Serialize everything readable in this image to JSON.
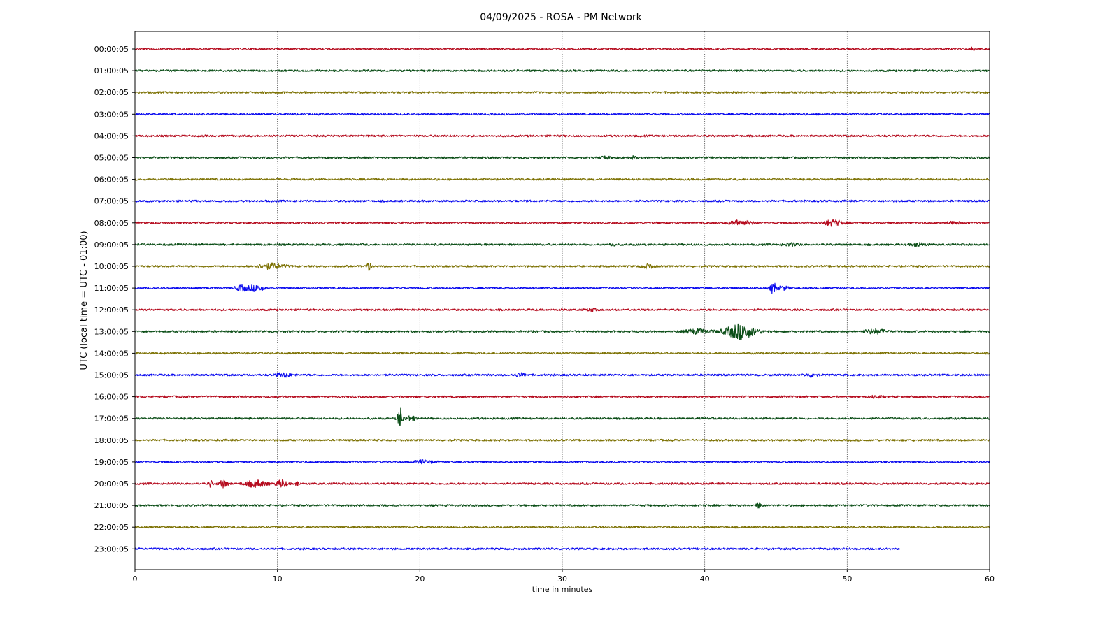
{
  "chart_data": {
    "type": "line",
    "title": "04/09/2025 - ROSA - PM Network",
    "xlabel": "time in minutes",
    "ylabel": "UTC (local time = UTC - 01:00)",
    "xlim": [
      0,
      60
    ],
    "xticks": [
      "0",
      "10",
      "20",
      "30",
      "40",
      "50",
      "60"
    ],
    "grid": "vertical dotted lines at x = 10, 20, 30, 40, 50",
    "colors": [
      "#b50b1e",
      "#0b4e17",
      "#7d7204",
      "#0a0aef"
    ],
    "rows": [
      {
        "label": "00:00:05",
        "color": "#b50b1e",
        "end": 60,
        "events": [
          {
            "t": 58.8,
            "amp": 0.12,
            "dur": 0.4
          }
        ]
      },
      {
        "label": "01:00:05",
        "color": "#0b4e17",
        "end": 60,
        "events": []
      },
      {
        "label": "02:00:05",
        "color": "#7d7204",
        "end": 60,
        "events": []
      },
      {
        "label": "03:00:05",
        "color": "#0a0aef",
        "end": 60,
        "events": []
      },
      {
        "label": "04:00:05",
        "color": "#b50b1e",
        "end": 60,
        "events": [
          {
            "t": 21.4,
            "amp": 0.12,
            "dur": 0.2
          }
        ]
      },
      {
        "label": "05:00:05",
        "color": "#0b4e17",
        "end": 60,
        "events": [
          {
            "t": 33.0,
            "amp": 0.1,
            "dur": 1.0
          },
          {
            "t": 35.0,
            "amp": 0.1,
            "dur": 0.8
          }
        ]
      },
      {
        "label": "06:00:05",
        "color": "#7d7204",
        "end": 60,
        "events": []
      },
      {
        "label": "07:00:05",
        "color": "#0a0aef",
        "end": 60,
        "events": []
      },
      {
        "label": "08:00:05",
        "color": "#b50b1e",
        "end": 60,
        "events": [
          {
            "t": 42.5,
            "amp": 0.22,
            "dur": 2.0
          },
          {
            "t": 49.0,
            "amp": 0.25,
            "dur": 1.8
          },
          {
            "t": 57.5,
            "amp": 0.12,
            "dur": 1.0
          }
        ]
      },
      {
        "label": "09:00:05",
        "color": "#0b4e17",
        "end": 60,
        "events": [
          {
            "t": 33.5,
            "amp": 0.12,
            "dur": 0.5
          },
          {
            "t": 46.0,
            "amp": 0.12,
            "dur": 1.5
          },
          {
            "t": 55.0,
            "amp": 0.16,
            "dur": 1.2
          }
        ]
      },
      {
        "label": "10:00:05",
        "color": "#7d7204",
        "end": 60,
        "events": [
          {
            "t": 9.5,
            "amp": 0.22,
            "dur": 2.5
          },
          {
            "t": 16.4,
            "amp": 0.38,
            "dur": 0.4
          },
          {
            "t": 36.0,
            "amp": 0.18,
            "dur": 1.0
          }
        ]
      },
      {
        "label": "11:00:05",
        "color": "#0a0aef",
        "end": 60,
        "events": [
          {
            "t": 7.5,
            "amp": 0.22,
            "dur": 1.2
          },
          {
            "t": 8.5,
            "amp": 0.25,
            "dur": 1.5
          },
          {
            "t": 44.8,
            "amp": 0.55,
            "dur": 0.5
          },
          {
            "t": 45.5,
            "amp": 0.15,
            "dur": 1.0
          }
        ]
      },
      {
        "label": "12:00:05",
        "color": "#b50b1e",
        "end": 60,
        "events": [
          {
            "t": 32.0,
            "amp": 0.12,
            "dur": 0.8
          }
        ]
      },
      {
        "label": "13:00:05",
        "color": "#0b4e17",
        "end": 60,
        "events": [
          {
            "t": 39.5,
            "amp": 0.18,
            "dur": 2.5
          },
          {
            "t": 42.5,
            "amp": 0.65,
            "dur": 2.8
          },
          {
            "t": 52.0,
            "amp": 0.2,
            "dur": 2.0
          }
        ]
      },
      {
        "label": "14:00:05",
        "color": "#7d7204",
        "end": 60,
        "events": []
      },
      {
        "label": "15:00:05",
        "color": "#0a0aef",
        "end": 60,
        "events": [
          {
            "t": 10.5,
            "amp": 0.18,
            "dur": 1.5
          },
          {
            "t": 27.0,
            "amp": 0.15,
            "dur": 1.0
          },
          {
            "t": 47.5,
            "amp": 0.15,
            "dur": 1.0
          }
        ]
      },
      {
        "label": "16:00:05",
        "color": "#b50b1e",
        "end": 60,
        "events": [
          {
            "t": 52.0,
            "amp": 0.12,
            "dur": 1.0
          }
        ]
      },
      {
        "label": "17:00:05",
        "color": "#0b4e17",
        "end": 60,
        "events": [
          {
            "t": 18.6,
            "amp": 1.0,
            "dur": 0.4
          },
          {
            "t": 19.3,
            "amp": 0.2,
            "dur": 1.2
          }
        ]
      },
      {
        "label": "18:00:05",
        "color": "#7d7204",
        "end": 60,
        "events": []
      },
      {
        "label": "19:00:05",
        "color": "#0a0aef",
        "end": 60,
        "events": [
          {
            "t": 20.3,
            "amp": 0.15,
            "dur": 1.5
          }
        ]
      },
      {
        "label": "20:00:05",
        "color": "#b50b1e",
        "end": 60,
        "events": [
          {
            "t": 5.3,
            "amp": 0.3,
            "dur": 0.3
          },
          {
            "t": 6.2,
            "amp": 0.32,
            "dur": 0.8
          },
          {
            "t": 8.5,
            "amp": 0.28,
            "dur": 2.0
          },
          {
            "t": 10.3,
            "amp": 0.32,
            "dur": 1.0
          },
          {
            "t": 11.4,
            "amp": 0.25,
            "dur": 0.3
          }
        ]
      },
      {
        "label": "21:00:05",
        "color": "#0b4e17",
        "end": 60,
        "events": [
          {
            "t": 43.8,
            "amp": 0.25,
            "dur": 0.4
          }
        ]
      },
      {
        "label": "22:00:05",
        "color": "#7d7204",
        "end": 60,
        "events": []
      },
      {
        "label": "23:00:05",
        "color": "#0a0aef",
        "end": 53.7,
        "events": []
      }
    ]
  }
}
